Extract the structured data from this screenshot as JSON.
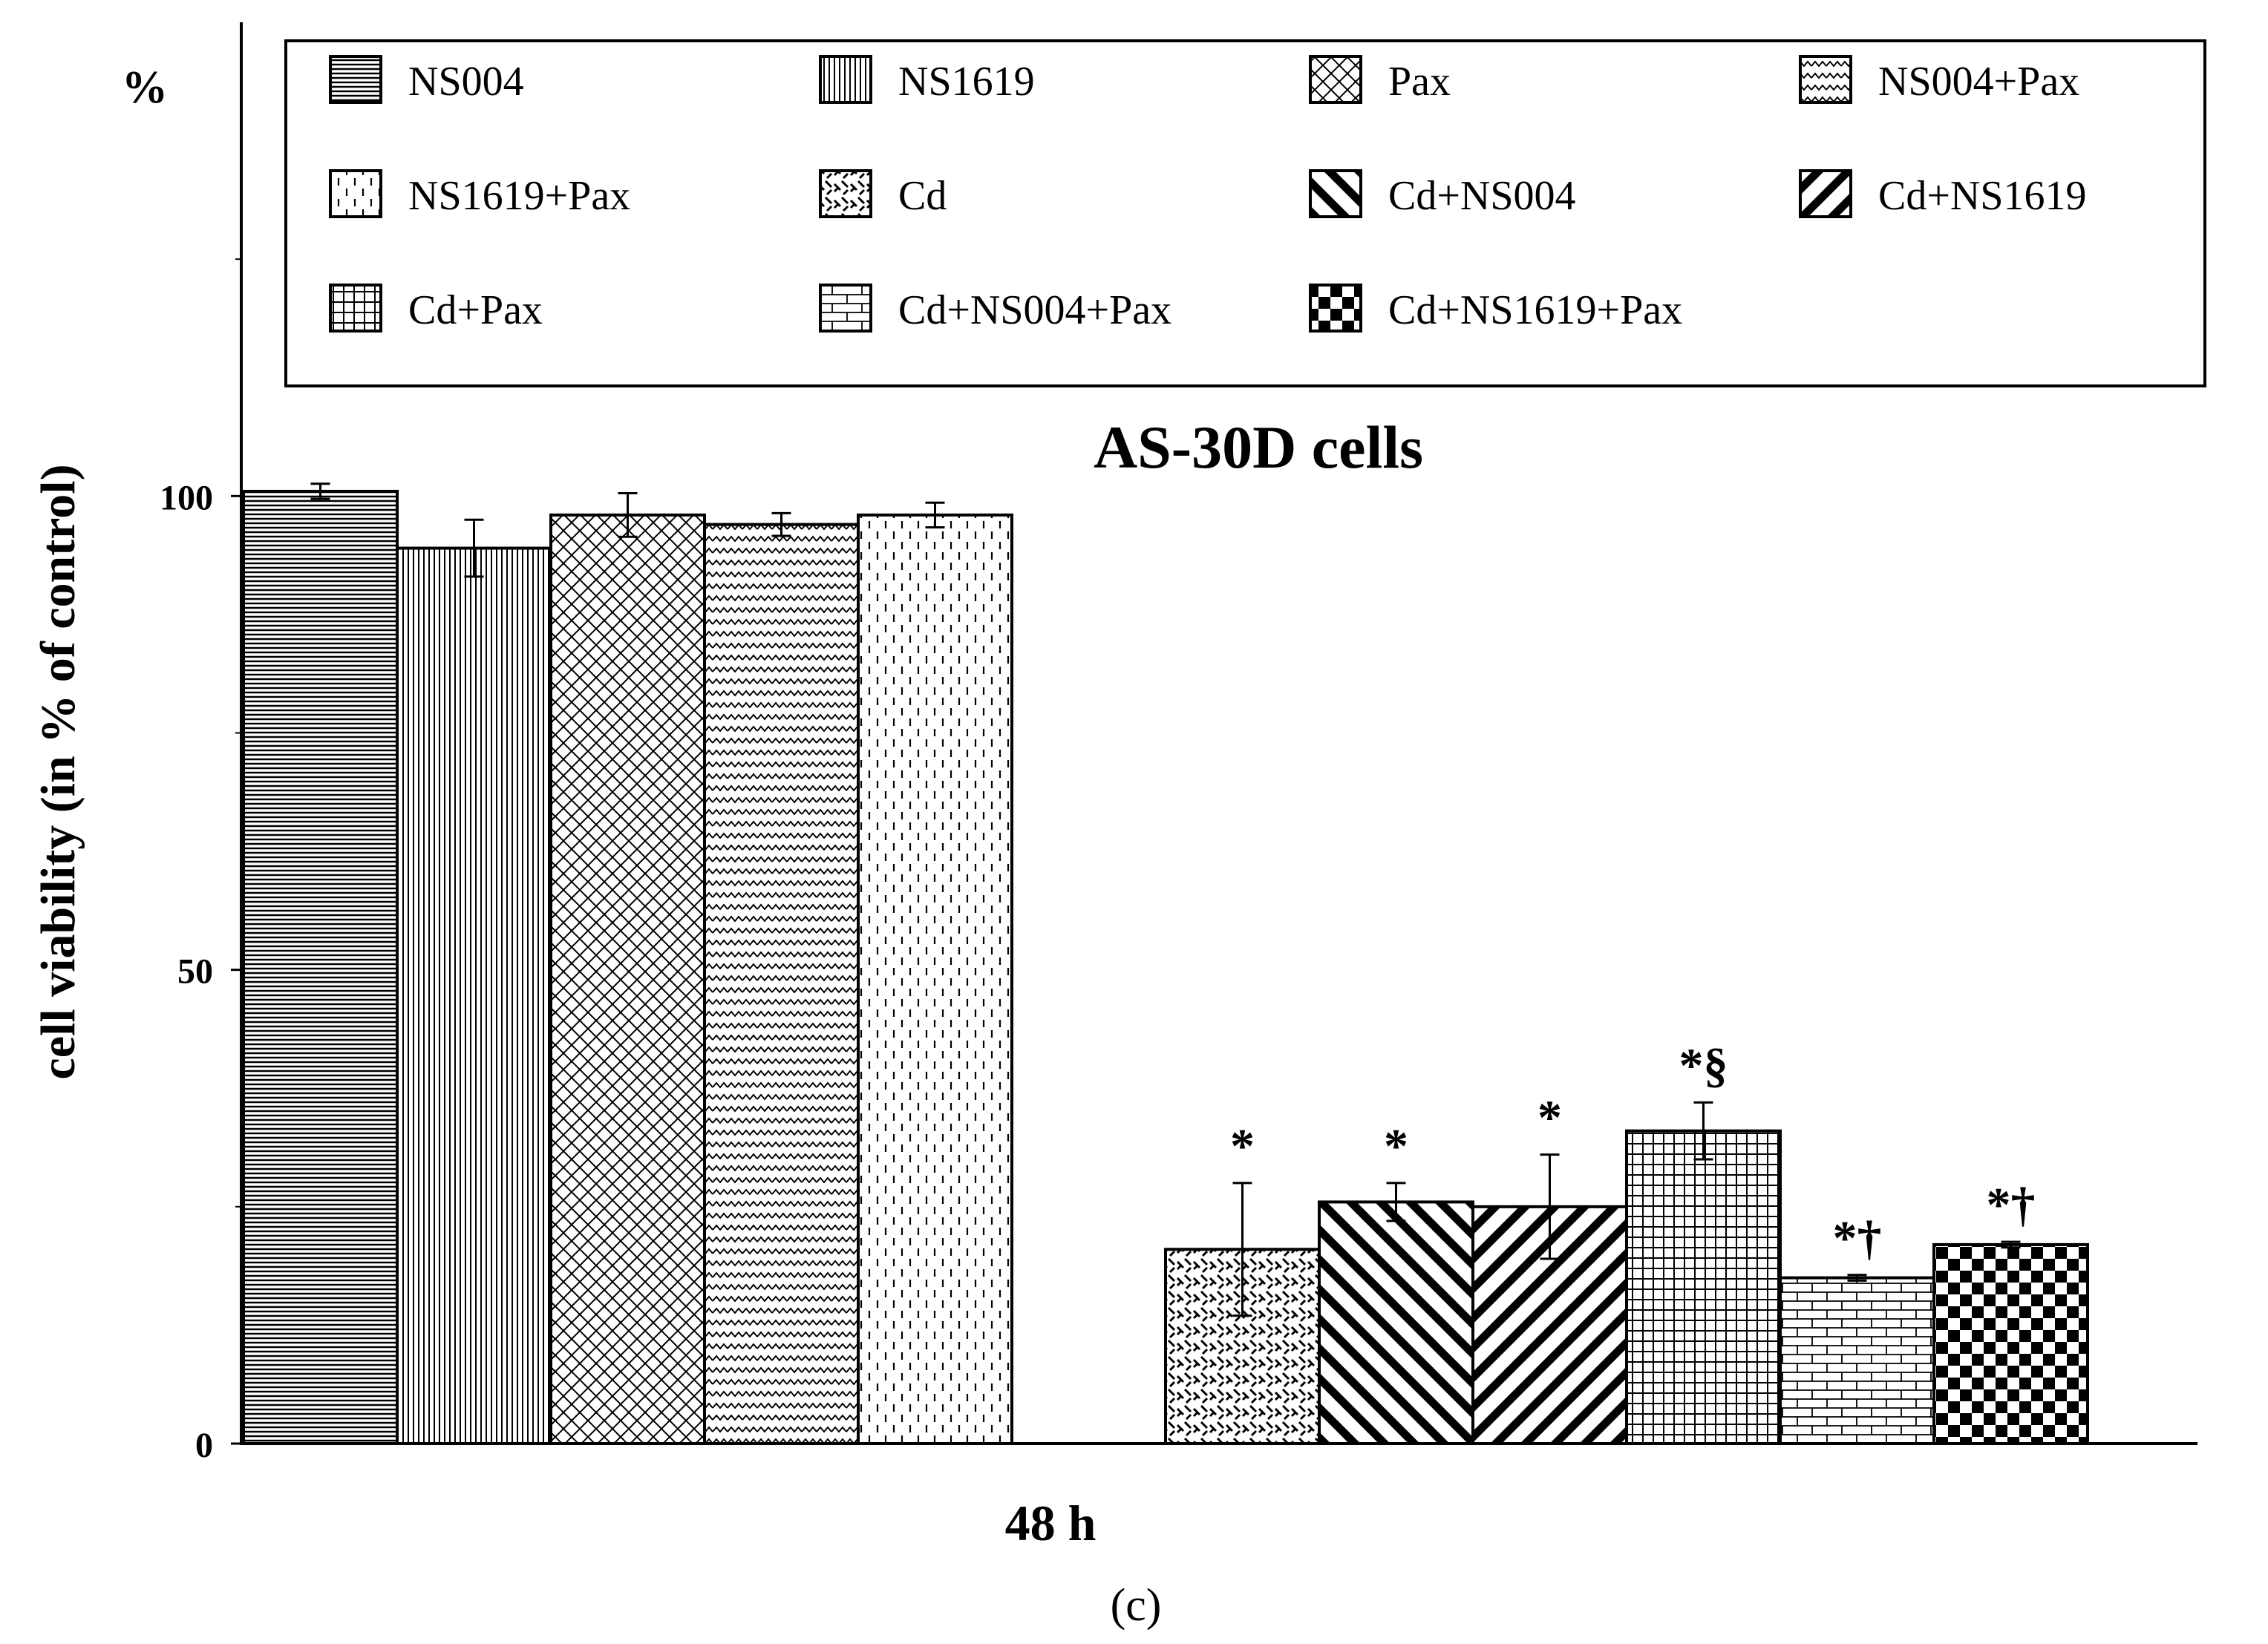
{
  "chart_data": {
    "type": "bar",
    "title": "AS-30D cells",
    "ylabel": "cell viability (in % of control)",
    "yunit": "%",
    "xlabel": "48 h",
    "caption": "(c)",
    "ylim": [
      0,
      150
    ],
    "yticks": [
      0,
      50,
      100
    ],
    "grid": false,
    "legend_position": "top",
    "gap_after_index": 4,
    "series": [
      {
        "name": "NS004",
        "value": 100.5,
        "error": 0.8,
        "annotation": "",
        "pattern": "hlines"
      },
      {
        "name": "NS1619",
        "value": 94.5,
        "error": 3,
        "annotation": "",
        "pattern": "vlines"
      },
      {
        "name": "Pax",
        "value": 98,
        "error": 2.3,
        "annotation": "",
        "pattern": "crosshatch"
      },
      {
        "name": "NS004+Pax",
        "value": 97,
        "error": 1.2,
        "annotation": "",
        "pattern": "zigzag"
      },
      {
        "name": "NS1619+Pax",
        "value": 98,
        "error": 1.3,
        "annotation": "",
        "pattern": "dashes"
      },
      {
        "name": "Cd",
        "value": 20.5,
        "error": 7,
        "annotation": "*",
        "pattern": "weave"
      },
      {
        "name": "Cd+NS004",
        "value": 25.5,
        "error": 2,
        "annotation": "*",
        "pattern": "backdiag"
      },
      {
        "name": "Cd+NS1619",
        "value": 25,
        "error": 5.5,
        "annotation": "*",
        "pattern": "fwddiag"
      },
      {
        "name": "Cd+Pax",
        "value": 33,
        "error": 3,
        "annotation": "*§",
        "pattern": "grid"
      },
      {
        "name": "Cd+NS004+Pax",
        "value": 17.5,
        "error": 0.3,
        "annotation": "*†",
        "pattern": "brick"
      },
      {
        "name": "Cd+NS1619+Pax",
        "value": 21,
        "error": 0.3,
        "annotation": "*†",
        "pattern": "checker"
      }
    ]
  }
}
